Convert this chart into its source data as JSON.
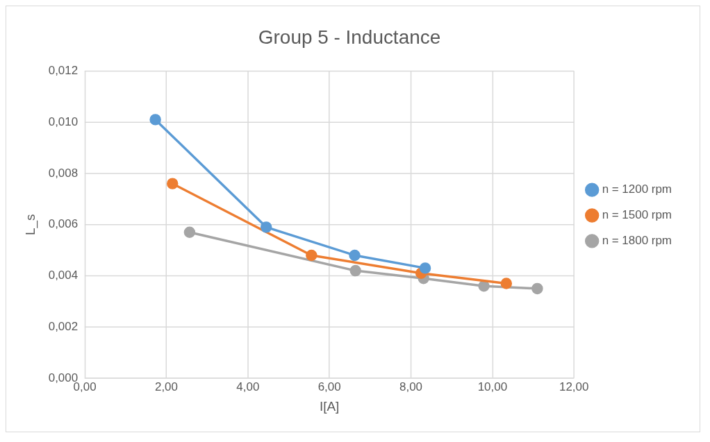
{
  "chart_data": {
    "type": "line",
    "title": "Group 5 - Inductance",
    "xlabel": "I[A]",
    "ylabel": "L_s",
    "series": [
      {
        "name": "n = 1200 rpm",
        "color": "#5b9bd5",
        "x": [
          1.73,
          4.45,
          6.62,
          8.35
        ],
        "values": [
          0.0101,
          0.0059,
          0.0048,
          0.0043
        ]
      },
      {
        "name": "n = 1500 rpm",
        "color": "#ed7d31",
        "x": [
          2.15,
          5.56,
          8.25,
          10.34
        ],
        "values": [
          0.0076,
          0.0048,
          0.0041,
          0.0037
        ]
      },
      {
        "name": "n = 1800 rpm",
        "color": "#a5a5a5",
        "x": [
          2.57,
          6.64,
          8.31,
          9.79,
          11.1
        ],
        "values": [
          0.0057,
          0.0042,
          0.0039,
          0.0036,
          0.0035
        ]
      }
    ],
    "xlim": [
      0,
      12
    ],
    "xticks": [
      {
        "value": 0,
        "label": "0,00"
      },
      {
        "value": 2,
        "label": "2,00"
      },
      {
        "value": 4,
        "label": "4,00"
      },
      {
        "value": 6,
        "label": "6,00"
      },
      {
        "value": 8,
        "label": "8,00"
      },
      {
        "value": 10,
        "label": "10,00"
      },
      {
        "value": 12,
        "label": "12,00"
      }
    ],
    "ylim": [
      0,
      0.012
    ],
    "yticks": [
      {
        "value": 0,
        "label": "0,000"
      },
      {
        "value": 0.002,
        "label": "0,002"
      },
      {
        "value": 0.004,
        "label": "0,004"
      },
      {
        "value": 0.006,
        "label": "0,006"
      },
      {
        "value": 0.008,
        "label": "0,008"
      },
      {
        "value": 0.01,
        "label": "0,010"
      },
      {
        "value": 0.012,
        "label": "0,012"
      }
    ],
    "grid": true,
    "legend": "right",
    "marker": "circle",
    "line_style": "solid"
  }
}
